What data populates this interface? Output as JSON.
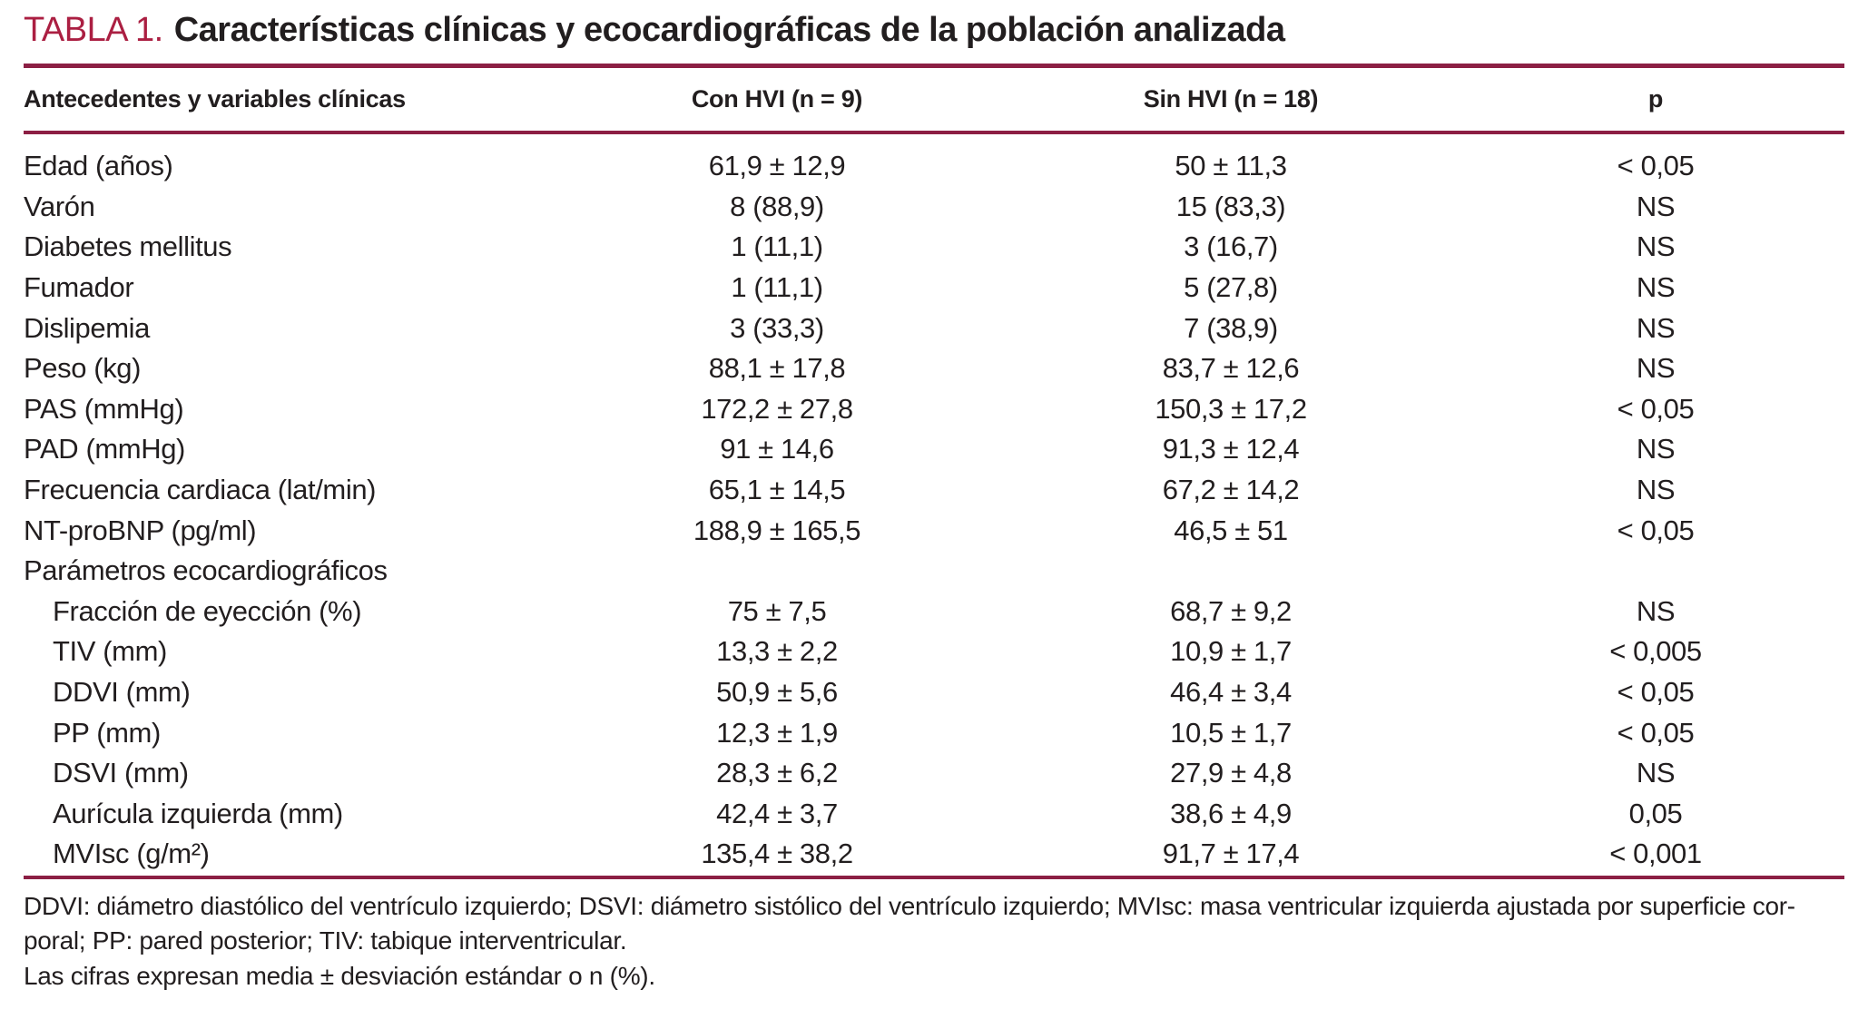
{
  "colors": {
    "accent": "#ab1f42",
    "rule": "#8c1f44",
    "text": "#221e1f",
    "page_bg": "#ffffff"
  },
  "title": {
    "label": "TABLA 1.",
    "text": "Características clínicas y ecocardiográficas de la población analizada"
  },
  "table": {
    "columns": [
      "Antecedentes y variables clínicas",
      "Con HVI (n = 9)",
      "Sin HVI (n = 18)",
      "p"
    ],
    "rows": [
      {
        "label": "Edad (años)",
        "indent": false,
        "con_hvi": "61,9 ± 12,9",
        "sin_hvi": "50 ± 11,3",
        "p": "< 0,05"
      },
      {
        "label": "Varón",
        "indent": false,
        "con_hvi": "8 (88,9)",
        "sin_hvi": "15 (83,3)",
        "p": "NS"
      },
      {
        "label": "Diabetes mellitus",
        "indent": false,
        "con_hvi": "1 (11,1)",
        "sin_hvi": "3 (16,7)",
        "p": "NS"
      },
      {
        "label": "Fumador",
        "indent": false,
        "con_hvi": "1 (11,1)",
        "sin_hvi": "5 (27,8)",
        "p": "NS"
      },
      {
        "label": "Dislipemia",
        "indent": false,
        "con_hvi": "3 (33,3)",
        "sin_hvi": "7 (38,9)",
        "p": "NS"
      },
      {
        "label": "Peso (kg)",
        "indent": false,
        "con_hvi": "88,1 ± 17,8",
        "sin_hvi": "83,7 ± 12,6",
        "p": "NS"
      },
      {
        "label": "PAS (mmHg)",
        "indent": false,
        "con_hvi": "172,2 ± 27,8",
        "sin_hvi": "150,3 ± 17,2",
        "p": "< 0,05"
      },
      {
        "label": "PAD (mmHg)",
        "indent": false,
        "con_hvi": "91 ± 14,6",
        "sin_hvi": "91,3 ± 12,4",
        "p": "NS"
      },
      {
        "label": "Frecuencia cardiaca (lat/min)",
        "indent": false,
        "con_hvi": "65,1 ± 14,5",
        "sin_hvi": "67,2 ± 14,2",
        "p": "NS"
      },
      {
        "label": "NT-proBNP (pg/ml)",
        "indent": false,
        "con_hvi": "188,9 ± 165,5",
        "sin_hvi": "46,5 ± 51",
        "p": "< 0,05"
      },
      {
        "label": "Parámetros ecocardiográficos",
        "indent": false,
        "con_hvi": "",
        "sin_hvi": "",
        "p": ""
      },
      {
        "label": "Fracción de eyección (%)",
        "indent": true,
        "con_hvi": "75 ± 7,5",
        "sin_hvi": "68,7 ± 9,2",
        "p": "NS"
      },
      {
        "label": "TIV (mm)",
        "indent": true,
        "con_hvi": "13,3 ± 2,2",
        "sin_hvi": "10,9 ± 1,7",
        "p": "< 0,005"
      },
      {
        "label": "DDVI (mm)",
        "indent": true,
        "con_hvi": "50,9 ± 5,6",
        "sin_hvi": "46,4 ± 3,4",
        "p": "< 0,05"
      },
      {
        "label": "PP (mm)",
        "indent": true,
        "con_hvi": "12,3 ± 1,9",
        "sin_hvi": "10,5 ± 1,7",
        "p": "< 0,05"
      },
      {
        "label": "DSVI (mm)",
        "indent": true,
        "con_hvi": "28,3 ± 6,2",
        "sin_hvi": "27,9 ± 4,8",
        "p": "NS"
      },
      {
        "label": "Aurícula izquierda (mm)",
        "indent": true,
        "con_hvi": "42,4 ± 3,7",
        "sin_hvi": "38,6 ± 4,9",
        "p": "0,05"
      },
      {
        "label": "MVIsc (g/m²)",
        "indent": true,
        "con_hvi": "135,4 ± 38,2",
        "sin_hvi": "91,7 ± 17,4",
        "p": "< 0,001"
      }
    ]
  },
  "footnotes": [
    "DDVI: diámetro diastólico del ventrículo izquierdo; DSVI: diámetro sistólico del ventrículo izquierdo; MVIsc: masa ventricular izquierda ajustada por superficie cor-",
    "poral; PP: pared posterior; TIV: tabique interventricular.",
    "Las cifras expresan media ± desviación estándar o n (%)."
  ]
}
